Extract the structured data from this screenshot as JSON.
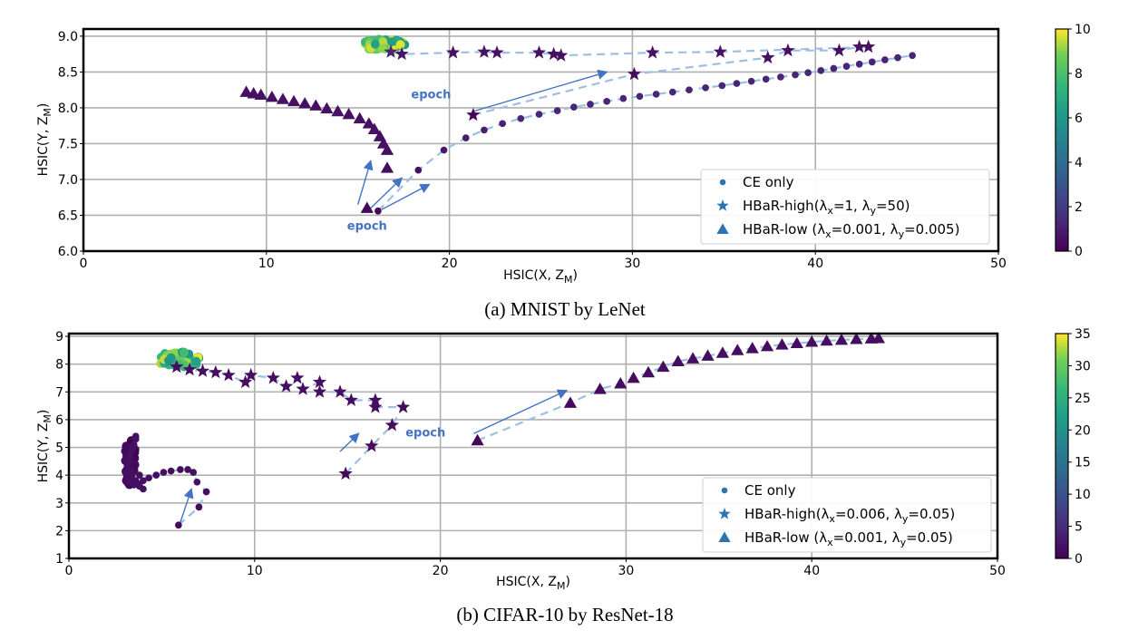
{
  "chart_data": [
    {
      "type": "scatter",
      "caption": "(a) MNIST by LeNet",
      "xlabel": "HSIC(X, Z_M)",
      "ylabel": "HSIC(Y, Z_M)",
      "xlim": [
        0,
        50
      ],
      "ylim": [
        6.0,
        9.1
      ],
      "xticks": [
        0,
        10,
        20,
        30,
        40,
        50
      ],
      "xtick_labels": [
        "0",
        "10",
        "20",
        "30",
        "40",
        "50"
      ],
      "yticks": [
        6.0,
        6.5,
        7.0,
        7.5,
        8.0,
        8.5,
        9.0
      ],
      "ytick_labels": [
        "6.0",
        "6.5",
        "7.0",
        "7.5",
        "8.0",
        "8.5",
        "9.0"
      ],
      "grid": true,
      "colorbar": {
        "label": "",
        "min": 0,
        "max": 10,
        "ticks": [
          0,
          2,
          4,
          6,
          8,
          10
        ],
        "tick_labels": [
          "0",
          "2",
          "4",
          "6",
          "8",
          "10"
        ],
        "colormap": "viridis"
      },
      "legend": {
        "position": "lower-right",
        "entries": [
          {
            "marker": "circle",
            "prefix": "CE only",
            "sub1": "",
            "mid1": "",
            "sub2": "",
            "mid2": ""
          },
          {
            "marker": "star",
            "prefix": "HBaR-high(λ",
            "sub1": "x",
            "mid1": "=1, λ",
            "sub2": "y",
            "mid2": "=50)"
          },
          {
            "marker": "triangle",
            "prefix": "HBaR-low (λ",
            "sub1": "x",
            "mid1": "=0.001, λ",
            "sub2": "y",
            "mid2": "=0.005)"
          }
        ]
      },
      "annotations": [
        {
          "text": "epoch",
          "x": 19.0,
          "y": 8.13
        },
        {
          "text": "epoch",
          "x": 15.5,
          "y": 6.3
        }
      ],
      "arrows": [
        {
          "from": [
            21.3,
            7.95
          ],
          "to": [
            28.6,
            8.5
          ]
        },
        {
          "from": [
            15.0,
            6.65
          ],
          "to": [
            15.7,
            7.26
          ]
        },
        {
          "from": [
            15.7,
            6.6
          ],
          "to": [
            17.4,
            7.02
          ]
        },
        {
          "from": [
            16.3,
            6.58
          ],
          "to": [
            18.9,
            6.93
          ]
        }
      ],
      "series": [
        {
          "name": "CE only",
          "marker": "circle",
          "dashed_path": true,
          "points": [
            [
              16.1,
              6.56,
              0
            ],
            [
              18.3,
              7.13,
              0.3
            ],
            [
              19.7,
              7.41,
              0.5
            ],
            [
              20.9,
              7.58,
              0.7
            ],
            [
              21.9,
              7.69,
              0.8
            ],
            [
              22.9,
              7.78,
              0.9
            ],
            [
              23.9,
              7.85,
              1.0
            ],
            [
              24.9,
              7.91,
              1.0
            ],
            [
              25.9,
              7.96,
              1.0
            ],
            [
              26.8,
              8.01,
              1.0
            ],
            [
              27.7,
              8.05,
              1.0
            ],
            [
              28.6,
              8.09,
              1.0
            ],
            [
              29.5,
              8.13,
              1.0
            ],
            [
              30.4,
              8.16,
              1.0
            ],
            [
              31.3,
              8.19,
              1.0
            ],
            [
              32.2,
              8.22,
              1.0
            ],
            [
              33.1,
              8.25,
              1.0
            ],
            [
              34.0,
              8.28,
              1.0
            ],
            [
              34.9,
              8.31,
              1.0
            ],
            [
              35.7,
              8.34,
              1.0
            ],
            [
              36.5,
              8.37,
              1.0
            ],
            [
              37.3,
              8.4,
              1.0
            ],
            [
              38.1,
              8.43,
              1.0
            ],
            [
              38.9,
              8.46,
              1.0
            ],
            [
              39.6,
              8.49,
              1.0
            ],
            [
              40.3,
              8.52,
              1.0
            ],
            [
              41.0,
              8.55,
              1.0
            ],
            [
              41.7,
              8.58,
              1.0
            ],
            [
              42.4,
              8.61,
              1.0
            ],
            [
              43.1,
              8.64,
              1.0
            ],
            [
              43.8,
              8.67,
              1.0
            ],
            [
              44.5,
              8.7,
              1.0
            ],
            [
              45.3,
              8.73,
              1.0
            ]
          ]
        },
        {
          "name": "HBaR-high",
          "marker": "star",
          "dashed_path": true,
          "points": [
            [
              21.3,
              7.9,
              0
            ],
            [
              30.1,
              8.47,
              0.2
            ],
            [
              37.4,
              8.7,
              0.3
            ],
            [
              38.5,
              8.8,
              0.3
            ],
            [
              41.3,
              8.8,
              0.3
            ],
            [
              42.4,
              8.85,
              0.3
            ],
            [
              42.9,
              8.85,
              0.3
            ],
            [
              34.8,
              8.78,
              0.3
            ],
            [
              31.1,
              8.77,
              0.3
            ],
            [
              26.1,
              8.73,
              0.3
            ],
            [
              25.7,
              8.75,
              0.3
            ],
            [
              24.9,
              8.77,
              0.3
            ],
            [
              22.6,
              8.77,
              0.3
            ],
            [
              21.9,
              8.78,
              0.3
            ],
            [
              20.2,
              8.77,
              0.3
            ],
            [
              17.4,
              8.75,
              0.5
            ],
            [
              16.8,
              8.78,
              1.0
            ]
          ]
        },
        {
          "name": "HBaR-low",
          "marker": "triangle",
          "dashed_path": false,
          "points": [
            [
              15.5,
              6.6,
              0
            ],
            [
              16.6,
              7.16,
              0.2
            ],
            [
              16.6,
              7.41,
              0.3
            ],
            [
              16.4,
              7.5,
              0.3
            ],
            [
              16.2,
              7.6,
              0.3
            ],
            [
              15.9,
              7.7,
              0.3
            ],
            [
              15.6,
              7.78,
              0.3
            ],
            [
              15.1,
              7.85,
              0.3
            ],
            [
              14.5,
              7.91,
              0.3
            ],
            [
              13.9,
              7.95,
              0.3
            ],
            [
              13.3,
              7.99,
              0.3
            ],
            [
              12.7,
              8.03,
              0.3
            ],
            [
              12.1,
              8.06,
              0.3
            ],
            [
              11.5,
              8.09,
              0.3
            ],
            [
              10.9,
              8.12,
              0.3
            ],
            [
              10.3,
              8.15,
              0.3
            ],
            [
              9.7,
              8.18,
              0.3
            ],
            [
              9.3,
              8.2,
              0.3
            ],
            [
              8.9,
              8.22,
              0.3
            ]
          ]
        }
      ],
      "clusters": [
        {
          "marker": "circle",
          "center": [
            16.4,
            8.88
          ],
          "spread": [
            1.2,
            0.08
          ],
          "color_range": [
            6,
            10
          ],
          "count": 60
        }
      ]
    },
    {
      "type": "scatter",
      "caption": "(b) CIFAR-10 by ResNet-18",
      "xlabel": "HSIC(X, Z_M)",
      "ylabel": "HSIC(Y, Z_M)",
      "xlim": [
        0,
        50
      ],
      "ylim": [
        1,
        9.1
      ],
      "xticks": [
        0,
        10,
        20,
        30,
        40,
        50
      ],
      "xtick_labels": [
        "0",
        "10",
        "20",
        "30",
        "40",
        "50"
      ],
      "yticks": [
        1,
        2,
        3,
        4,
        5,
        6,
        7,
        8,
        9
      ],
      "ytick_labels": [
        "1",
        "2",
        "3",
        "4",
        "5",
        "6",
        "7",
        "8",
        "9"
      ],
      "grid": true,
      "colorbar": {
        "label": "",
        "min": 0,
        "max": 35,
        "ticks": [
          0,
          5,
          10,
          15,
          20,
          25,
          30,
          35
        ],
        "tick_labels": [
          "0",
          "5",
          "10",
          "15",
          "20",
          "25",
          "30",
          "35"
        ],
        "colormap": "viridis"
      },
      "legend": {
        "position": "lower-right",
        "entries": [
          {
            "marker": "circle",
            "prefix": "CE only",
            "sub1": "",
            "mid1": "",
            "sub2": "",
            "mid2": ""
          },
          {
            "marker": "star",
            "prefix": "HBaR-high(λ",
            "sub1": "x",
            "mid1": "=0.006, λ",
            "sub2": "y",
            "mid2": "=0.05)"
          },
          {
            "marker": "triangle",
            "prefix": "HBaR-low (λ",
            "sub1": "x",
            "mid1": "=0.001, λ",
            "sub2": "y",
            "mid2": "=0.05)"
          }
        ]
      },
      "annotations": [
        {
          "text": "epoch",
          "x": 19.2,
          "y": 5.4
        }
      ],
      "arrows": [
        {
          "from": [
            6.0,
            2.3
          ],
          "to": [
            6.6,
            3.5
          ]
        },
        {
          "from": [
            14.6,
            4.85
          ],
          "to": [
            15.6,
            5.5
          ]
        },
        {
          "from": [
            21.8,
            5.5
          ],
          "to": [
            26.8,
            7.05
          ]
        }
      ],
      "series": [
        {
          "name": "CE only",
          "marker": "circle",
          "dashed_path": true,
          "points": [
            [
              5.9,
              2.2,
              0
            ],
            [
              7.0,
              2.85,
              0.5
            ],
            [
              7.4,
              3.4,
              0.8
            ],
            [
              6.9,
              3.75,
              1.0
            ],
            [
              6.7,
              4.1,
              1.0
            ],
            [
              6.4,
              4.2,
              1.0
            ],
            [
              6.0,
              4.2,
              1.0
            ],
            [
              5.5,
              4.15,
              1.0
            ],
            [
              5.1,
              4.1,
              1.0
            ],
            [
              4.7,
              4.0,
              1.0
            ],
            [
              4.3,
              3.9,
              1.0
            ],
            [
              4.0,
              3.8,
              1.0
            ],
            [
              3.7,
              3.7,
              1.0
            ],
            [
              3.5,
              3.65,
              1.0
            ],
            [
              3.3,
              3.75,
              1.0
            ],
            [
              3.15,
              3.95,
              1.0
            ],
            [
              3.1,
              4.1,
              1.0
            ],
            [
              3.15,
              4.3,
              1.0
            ],
            [
              3.2,
              4.5,
              1.0
            ],
            [
              3.3,
              4.7,
              1.0
            ],
            [
              3.4,
              4.9,
              1.0
            ],
            [
              3.5,
              5.1,
              1.0
            ],
            [
              3.6,
              5.3,
              1.0
            ],
            [
              3.6,
              5.4,
              1.0
            ],
            [
              3.3,
              4.2,
              1.0
            ],
            [
              3.4,
              4.0,
              1.0
            ],
            [
              3.6,
              3.8,
              1.0
            ],
            [
              3.8,
              3.6,
              1.0
            ],
            [
              4.0,
              3.5,
              1.0
            ],
            [
              3.8,
              4.0,
              1.0
            ]
          ]
        },
        {
          "name": "HBaR-high",
          "marker": "star",
          "dashed_path": true,
          "points": [
            [
              14.9,
              4.05,
              0
            ],
            [
              16.3,
              5.05,
              0.3
            ],
            [
              17.4,
              5.8,
              0.5
            ],
            [
              18.0,
              6.45,
              0.6
            ],
            [
              16.5,
              6.45,
              0.7
            ],
            [
              16.5,
              6.7,
              0.8
            ],
            [
              15.2,
              6.7,
              0.8
            ],
            [
              14.6,
              7.0,
              0.8
            ],
            [
              13.5,
              7.0,
              0.8
            ],
            [
              13.5,
              7.35,
              0.8
            ],
            [
              12.6,
              7.1,
              0.8
            ],
            [
              12.3,
              7.5,
              0.8
            ],
            [
              11.7,
              7.2,
              0.8
            ],
            [
              11.0,
              7.5,
              0.8
            ],
            [
              9.8,
              7.6,
              0.8
            ],
            [
              9.5,
              7.35,
              0.8
            ],
            [
              8.6,
              7.6,
              0.8
            ],
            [
              7.9,
              7.7,
              0.8
            ],
            [
              7.2,
              7.75,
              0.8
            ],
            [
              6.5,
              7.8,
              0.8
            ],
            [
              5.8,
              7.9,
              0.8
            ]
          ]
        },
        {
          "name": "HBaR-low",
          "marker": "triangle",
          "dashed_path": true,
          "points": [
            [
              22.0,
              5.25,
              0
            ],
            [
              27.0,
              6.6,
              0.3
            ],
            [
              28.6,
              7.1,
              0.5
            ],
            [
              29.7,
              7.3,
              0.6
            ],
            [
              30.4,
              7.5,
              0.7
            ],
            [
              31.2,
              7.7,
              0.8
            ],
            [
              32.0,
              7.9,
              0.8
            ],
            [
              32.8,
              8.1,
              0.8
            ],
            [
              33.6,
              8.2,
              0.8
            ],
            [
              34.4,
              8.3,
              0.8
            ],
            [
              35.2,
              8.4,
              0.8
            ],
            [
              36.0,
              8.5,
              0.8
            ],
            [
              36.8,
              8.57,
              0.8
            ],
            [
              37.6,
              8.64,
              0.8
            ],
            [
              38.4,
              8.7,
              0.8
            ],
            [
              39.2,
              8.75,
              0.8
            ],
            [
              40.0,
              8.8,
              0.8
            ],
            [
              40.8,
              8.84,
              0.8
            ],
            [
              41.6,
              8.87,
              0.8
            ],
            [
              42.4,
              8.9,
              0.8
            ],
            [
              43.2,
              8.92,
              0.8
            ],
            [
              43.6,
              8.93,
              0.8
            ]
          ]
        }
      ],
      "clusters": [
        {
          "marker": "circle",
          "center": [
            5.9,
            8.15
          ],
          "spread": [
            1.2,
            0.3
          ],
          "color_range": [
            20,
            35
          ],
          "count": 60
        },
        {
          "marker": "circle",
          "center": [
            3.3,
            4.45
          ],
          "spread": [
            0.3,
            0.9
          ],
          "color_range": [
            0,
            2
          ],
          "count": 45
        }
      ]
    }
  ]
}
